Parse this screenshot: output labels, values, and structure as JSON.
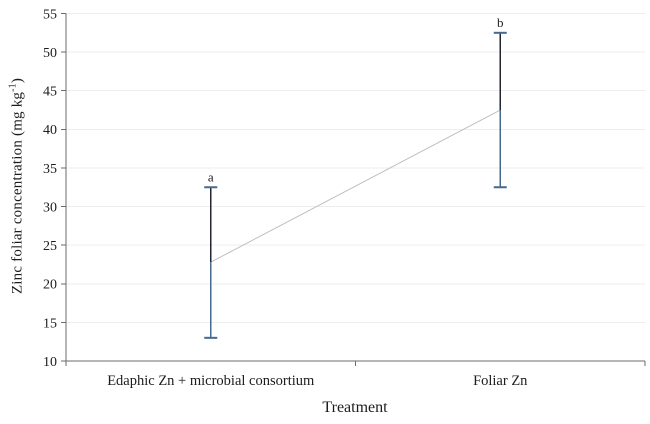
{
  "figure": {
    "xlabel": "Treatment",
    "ylabel_prefix": "Zinc foliar concentration (mg kg",
    "ylabel_sup": "-1",
    "ylabel_suffix": ")"
  },
  "colors": {
    "axis": "#6b6b6b",
    "gridline": "#ededed",
    "connector_line": "#bfbfbf",
    "error_bar_upper": "#23262c",
    "error_bar_lower": "#46698f",
    "error_bar_cap": "#46698f",
    "text": "#1c1c1c"
  },
  "chart_data": {
    "type": "line",
    "title": "",
    "xlabel": "Treatment",
    "ylabel": "Zinc foliar concentration (mg kg⁻¹)",
    "categories": [
      "Edaphic Zn + microbial consortium",
      "Foliar Zn"
    ],
    "values": [
      22.8,
      42.5
    ],
    "error_low": [
      13,
      32.5
    ],
    "error_high": [
      32.5,
      52.5
    ],
    "sig_letters": [
      "a",
      "b"
    ],
    "ylim": [
      10,
      55
    ],
    "ytick_step": 5,
    "yticks": [
      10,
      15,
      20,
      25,
      30,
      35,
      40,
      45,
      50,
      55
    ],
    "grid": "horizontal",
    "legend": "none",
    "markers": "none",
    "connector": "thin light-gray straight line between category means"
  }
}
